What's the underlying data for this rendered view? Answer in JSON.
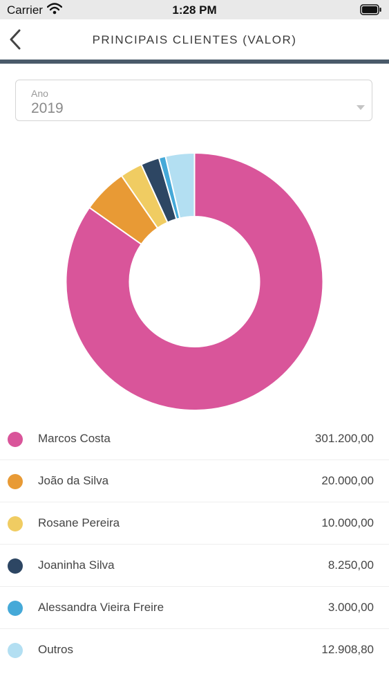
{
  "status_bar": {
    "carrier": "Carrier",
    "time": "1:28 PM"
  },
  "header": {
    "title": "PRINCIPAIS CLIENTES (VALOR)",
    "back_icon": "chevron-left-icon"
  },
  "filter": {
    "label": "Ano",
    "value": "2019"
  },
  "chart_data": {
    "type": "pie",
    "variant": "donut",
    "grid": false,
    "legend_position": "bottom",
    "categories": [
      "Marcos Costa",
      "João da Silva",
      "Rosane Pereira",
      "Joaninha Silva",
      "Alessandra Vieira Freire",
      "Outros"
    ],
    "values": [
      301200.0,
      20000.0,
      10000.0,
      8250.0,
      3000.0,
      12908.8
    ],
    "value_labels": [
      "301.200,00",
      "20.000,00",
      "10.000,00",
      "8.250,00",
      "3.000,00",
      "12.908,80"
    ],
    "colors": [
      "#d9559a",
      "#e89a35",
      "#f0cc62",
      "#2d4663",
      "#45a9d8",
      "#b3dff2"
    ]
  }
}
